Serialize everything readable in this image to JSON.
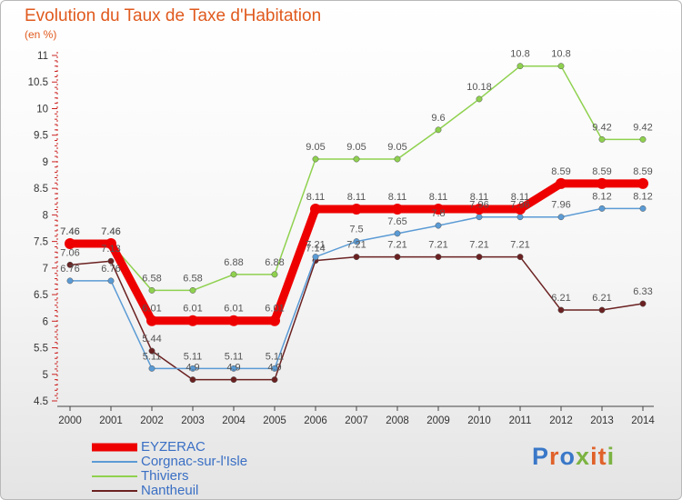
{
  "chart_data": {
    "type": "line",
    "title": "Evolution du Taux de Taxe d'Habitation",
    "subtitle": "(en %)",
    "xlabel": "",
    "ylabel": "",
    "categories": [
      "2000",
      "2001",
      "2002",
      "2003",
      "2004",
      "2005",
      "2006",
      "2007",
      "2008",
      "2009",
      "2010",
      "2011",
      "2012",
      "2013",
      "2014"
    ],
    "ylim": [
      4.5,
      11
    ],
    "yticks": [
      "4.5",
      "5",
      "5.5",
      "6",
      "6.5",
      "7",
      "7.5",
      "8",
      "8.5",
      "9",
      "9.5",
      "10",
      "10.5",
      "11"
    ],
    "grid": false,
    "legend": "bottom-left",
    "series": [
      {
        "name": "EYZERAC",
        "color": "#ee0000",
        "values": [
          7.46,
          7.46,
          6.01,
          6.01,
          6.01,
          6.01,
          8.11,
          8.11,
          8.11,
          8.11,
          8.11,
          8.11,
          8.59,
          8.59,
          8.59
        ]
      },
      {
        "name": "Corgnac-sur-l'Isle",
        "color": "#5b9bd5",
        "values": [
          6.76,
          6.76,
          5.11,
          5.11,
          5.11,
          5.11,
          7.21,
          7.5,
          7.65,
          7.8,
          7.96,
          7.96,
          7.96,
          8.12,
          8.12
        ]
      },
      {
        "name": "Thiviers",
        "color": "#8fd14f",
        "values": [
          7.46,
          7.46,
          6.58,
          6.58,
          6.88,
          6.88,
          9.05,
          9.05,
          9.05,
          9.6,
          10.18,
          10.8,
          10.8,
          9.42,
          9.42
        ]
      },
      {
        "name": "Nantheuil",
        "color": "#6b2121",
        "values": [
          7.06,
          7.13,
          5.44,
          4.9,
          4.9,
          4.9,
          7.14,
          7.21,
          7.21,
          7.21,
          7.21,
          7.21,
          6.21,
          6.21,
          6.33
        ]
      }
    ]
  },
  "logo": {
    "text": "Proxiti",
    "colors": [
      "#3a78c8",
      "#e0622a",
      "#3a78c8",
      "#7cb342",
      "#e0622a",
      "#e0622a",
      "#7cb342"
    ]
  }
}
